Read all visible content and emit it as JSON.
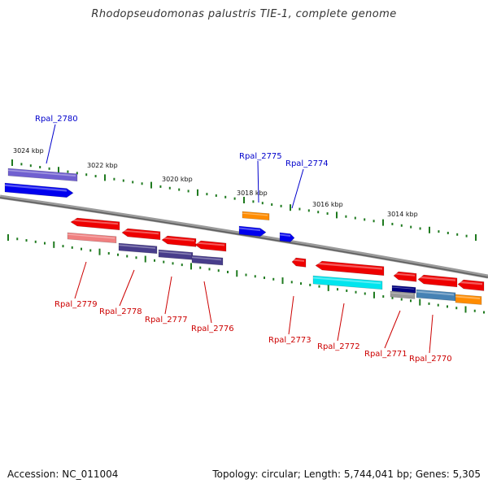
{
  "title": "Rhodopseudomonas palustris TIE-1, complete genome",
  "footer": {
    "accession": "Accession: NC_011004",
    "topology": "Topology: circular; Length: 5,744,041 bp; Genes: 5,305"
  },
  "kbp_labels": [
    "3024 kbp",
    "3022 kbp",
    "3020 kbp",
    "3018 kbp",
    "3016 kbp",
    "3014 kbp"
  ],
  "genes": [
    {
      "id": "Rpal_2780",
      "strand": "+",
      "label_color": "#0000cc"
    },
    {
      "id": "Rpal_2779",
      "strand": "-",
      "label_color": "#cc0000"
    },
    {
      "id": "Rpal_2778",
      "strand": "-",
      "label_color": "#cc0000"
    },
    {
      "id": "Rpal_2777",
      "strand": "-",
      "label_color": "#cc0000"
    },
    {
      "id": "Rpal_2776",
      "strand": "-",
      "label_color": "#cc0000"
    },
    {
      "id": "Rpal_2775",
      "strand": "+",
      "label_color": "#0000cc"
    },
    {
      "id": "Rpal_2774",
      "strand": "+",
      "label_color": "#0000cc"
    },
    {
      "id": "Rpal_2773",
      "strand": "-",
      "label_color": "#cc0000"
    },
    {
      "id": "Rpal_2772",
      "strand": "-",
      "label_color": "#cc0000"
    },
    {
      "id": "Rpal_2771",
      "strand": "-",
      "label_color": "#cc0000"
    },
    {
      "id": "Rpal_2770",
      "strand": "-",
      "label_color": "#cc0000"
    }
  ],
  "colors": {
    "backbone": "#7a7a7a",
    "tick": "#1f7a1f",
    "forward_gene": "#0000ee",
    "reverse_gene": "#ee0000",
    "cog_purple": "#7060d0",
    "cog_orange": "#ff8c00",
    "cog_pink": "#f08080",
    "cog_slate": "#483d8b",
    "cog_cyan": "#00e5ee",
    "cog_navy": "#000080",
    "cog_steel": "#4682b4"
  }
}
